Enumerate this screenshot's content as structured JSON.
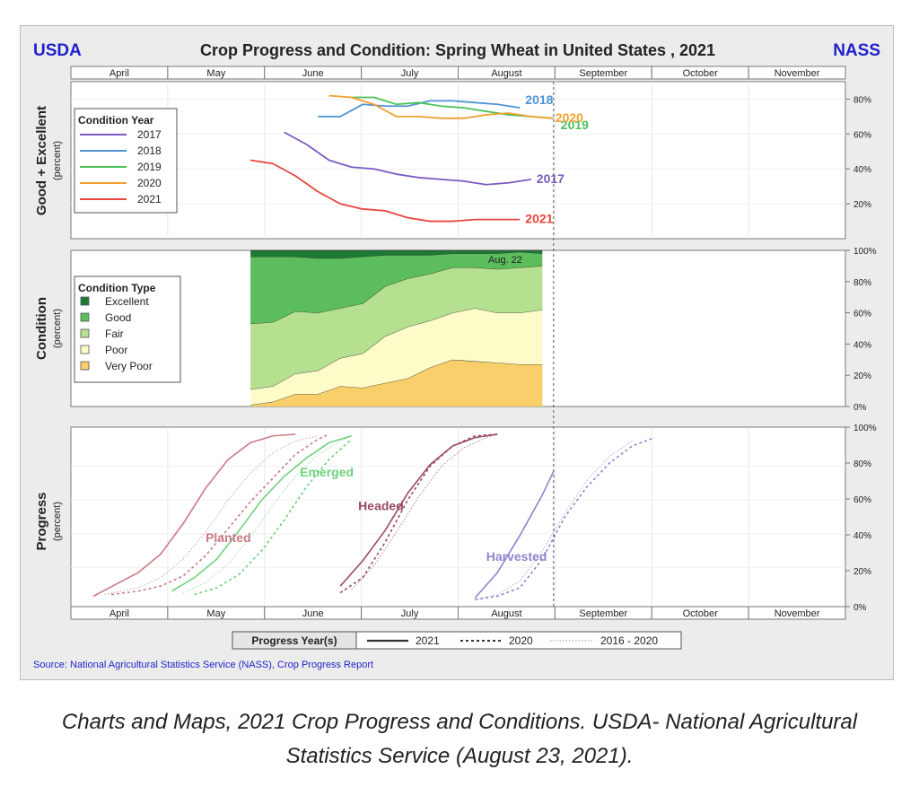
{
  "header": {
    "left_logo": "USDA",
    "right_logo": "NASS",
    "title": "Crop Progress and Condition: Spring Wheat in United States , 2021"
  },
  "months": [
    "April",
    "May",
    "June",
    "July",
    "August",
    "September",
    "October",
    "November"
  ],
  "source": "Source: National Agricultural Statistics Service (NASS), Crop Progress Report",
  "progress_year_legend": {
    "title": "Progress Year(s)",
    "items": [
      "2021",
      "2020",
      "2016 - 2020"
    ]
  },
  "caption": {
    "line1": "Charts and Maps, 2021 Crop Progress and Conditions. USDA- National Agricultural",
    "line2": "Statistics Service (August 23, 2021)."
  },
  "colors": {
    "logo": "#1f1fcc",
    "source": "#1f1fcc",
    "y2017": "#7b5bbf",
    "y2018": "#4f93d6",
    "y2019": "#4cc25a",
    "y2020": "#f0a030",
    "y2021": "#e8453c",
    "excellent": "#1d7a35",
    "good": "#5bbd5b",
    "fair": "#b5e08f",
    "poor": "#fdfcc8",
    "very_poor": "#f8cf6a",
    "planted": "#c97b83",
    "emerged": "#6fd17c",
    "headed": "#9a4a63",
    "harvested": "#8d86cc"
  },
  "chart_data": [
    {
      "type": "line",
      "title": "",
      "ylabel": "Good + Excellent",
      "ylabel_unit": "(percent)",
      "x_unit": "week",
      "ylim": [
        0,
        90
      ],
      "yticks": [
        "20%",
        "40%",
        "60%",
        "80%"
      ],
      "legend_title": "Condition Year",
      "series": [
        {
          "name": "2017",
          "label": "2017",
          "x": [
            9.5,
            10.5,
            11.5,
            12.5,
            13.5,
            14.5,
            15.5,
            16.5,
            17.5,
            18.5,
            19.5,
            20.5
          ],
          "values": [
            61,
            54,
            45,
            41,
            40,
            37,
            35,
            34,
            33,
            31,
            32,
            34
          ]
        },
        {
          "name": "2018",
          "label": "2018",
          "x": [
            11,
            12,
            13,
            14,
            15,
            16,
            17,
            18,
            19,
            20
          ],
          "values": [
            70,
            70,
            77,
            76,
            76,
            79,
            79,
            78,
            77,
            75
          ]
        },
        {
          "name": "2019",
          "label": "2019",
          "x": [
            12.5,
            13.5,
            14.5,
            15.5,
            16.5,
            17.5,
            18.5,
            19.5,
            20.5,
            21.5
          ],
          "values": [
            81,
            81,
            77,
            78,
            76,
            75,
            73,
            71,
            70,
            69
          ]
        },
        {
          "name": "2020",
          "label": "2020",
          "x": [
            11.5,
            12.5,
            13.5,
            14.5,
            15.5,
            16.5,
            17.5,
            18.5,
            19.5,
            20.5,
            21.5
          ],
          "values": [
            82,
            81,
            77,
            70,
            70,
            69,
            69,
            71,
            72,
            70,
            69
          ]
        },
        {
          "name": "2021",
          "label": "2021",
          "x": [
            8,
            9,
            10,
            11,
            12,
            13,
            14,
            15,
            16,
            17,
            18,
            19,
            20
          ],
          "values": [
            45,
            43,
            36,
            27,
            20,
            17,
            16,
            12,
            10,
            10,
            11,
            11,
            11
          ]
        }
      ],
      "current_week_marker": 21.5
    },
    {
      "type": "area",
      "title": "",
      "ylabel": "Condition",
      "ylabel_unit": "(percent)",
      "stacked": true,
      "ylim": [
        0,
        100
      ],
      "yticks": [
        "0%",
        "20%",
        "40%",
        "60%",
        "80%",
        "100%"
      ],
      "legend_title": "Condition Type",
      "annotation": "Aug. 22",
      "x": [
        8,
        9,
        10,
        11,
        12,
        13,
        14,
        15,
        16,
        17,
        18,
        19,
        20,
        21
      ],
      "series": [
        {
          "name": "Very Poor",
          "values": [
            1,
            3,
            8,
            8,
            13,
            12,
            15,
            18,
            25,
            30,
            29,
            28,
            27,
            27
          ]
        },
        {
          "name": "Poor",
          "values": [
            10,
            10,
            13,
            15,
            18,
            22,
            30,
            33,
            30,
            30,
            34,
            32,
            33,
            35
          ]
        },
        {
          "name": "Fair",
          "values": [
            42,
            41,
            40,
            37,
            32,
            32,
            32,
            31,
            30,
            29,
            26,
            28,
            29,
            28
          ]
        },
        {
          "name": "Good",
          "values": [
            43,
            42,
            35,
            35,
            32,
            30,
            20,
            15,
            12,
            9,
            9,
            10,
            10,
            8
          ]
        },
        {
          "name": "Excellent",
          "values": [
            4,
            4,
            4,
            5,
            5,
            4,
            3,
            3,
            3,
            2,
            2,
            2,
            1,
            2
          ]
        }
      ]
    },
    {
      "type": "line",
      "title": "",
      "ylabel": "Progress",
      "ylabel_unit": "(percent)",
      "ylim": [
        0,
        100
      ],
      "yticks": [
        "0%",
        "20%",
        "40%",
        "60%",
        "80%",
        "100%"
      ],
      "stage_labels": [
        "Planted",
        "Emerged",
        "Headed",
        "Harvested"
      ],
      "series": [
        {
          "name": "Planted 2021",
          "stage": "planted",
          "year": "2021",
          "x": [
            1,
            2,
            3,
            4,
            5,
            6,
            7,
            8,
            9,
            10
          ],
          "values": [
            3,
            10,
            17,
            28,
            46,
            67,
            84,
            94,
            98,
            99
          ]
        },
        {
          "name": "Planted 2020",
          "stage": "planted",
          "year": "2020",
          "x": [
            1.8,
            3,
            4,
            5,
            6,
            7,
            8,
            9,
            10,
            11,
            11.5
          ],
          "values": [
            4,
            6,
            9,
            15,
            27,
            43,
            59,
            73,
            87,
            96,
            99
          ]
        },
        {
          "name": "Planted 2016 - 2020",
          "stage": "planted",
          "year": "2016 - 2020",
          "x": [
            1.5,
            3,
            4,
            5,
            6,
            7,
            8,
            9,
            10,
            11
          ],
          "values": [
            4,
            8,
            14,
            25,
            41,
            60,
            76,
            88,
            95,
            98
          ]
        },
        {
          "name": "Emerged 2021",
          "stage": "emerged",
          "year": "2021",
          "x": [
            4.5,
            5.5,
            6.5,
            7.5,
            8.5,
            9.5,
            10.5,
            11.5,
            12.5
          ],
          "values": [
            6,
            14,
            25,
            42,
            60,
            74,
            85,
            94,
            98
          ]
        },
        {
          "name": "Emerged 2020",
          "stage": "emerged",
          "year": "2020",
          "x": [
            5.5,
            6.5,
            7.5,
            8.5,
            9.5,
            10.5,
            11.5,
            12.5
          ],
          "values": [
            4,
            8,
            16,
            30,
            48,
            68,
            84,
            96
          ]
        },
        {
          "name": "Emerged 2016 - 2020",
          "stage": "emerged",
          "year": "2016 - 2020",
          "x": [
            5,
            6,
            7,
            8,
            9,
            10,
            11,
            12,
            12.5
          ],
          "values": [
            5,
            11,
            22,
            38,
            57,
            74,
            87,
            95,
            98
          ]
        },
        {
          "name": "Headed 2021",
          "stage": "headed",
          "year": "2021",
          "x": [
            12,
            13,
            14,
            15,
            16,
            17,
            18,
            19
          ],
          "values": [
            9,
            24,
            42,
            64,
            81,
            92,
            97,
            99
          ]
        },
        {
          "name": "Headed 2020",
          "stage": "headed",
          "year": "2020",
          "x": [
            12,
            13,
            14,
            15,
            16,
            17,
            18,
            19
          ],
          "values": [
            5,
            14,
            35,
            60,
            80,
            92,
            98,
            99
          ]
        },
        {
          "name": "Headed 2016 - 2020",
          "stage": "headed",
          "year": "2016 - 2020",
          "x": [
            12.5,
            13.5,
            14.5,
            15.5,
            16.5,
            17.5,
            18.5,
            19
          ],
          "values": [
            7,
            21,
            41,
            62,
            80,
            91,
            97,
            99
          ]
        },
        {
          "name": "Harvested 2021",
          "stage": "harvested",
          "year": "2021",
          "x": [
            18,
            19,
            20,
            21,
            21.5
          ],
          "values": [
            2,
            17,
            39,
            63,
            77
          ]
        },
        {
          "name": "Harvested 2020",
          "stage": "harvested",
          "year": "2020",
          "x": [
            18,
            19,
            20,
            21,
            22,
            23,
            24,
            25,
            26
          ],
          "values": [
            1,
            3,
            8,
            25,
            50,
            68,
            82,
            92,
            97
          ]
        },
        {
          "name": "Harvested 2016 - 2020",
          "stage": "harvested",
          "year": "2016 - 2020",
          "x": [
            18,
            19,
            20,
            21,
            22,
            23,
            24,
            25
          ],
          "values": [
            1,
            4,
            12,
            30,
            52,
            72,
            86,
            95
          ]
        }
      ],
      "current_week_marker": 21.5
    }
  ]
}
